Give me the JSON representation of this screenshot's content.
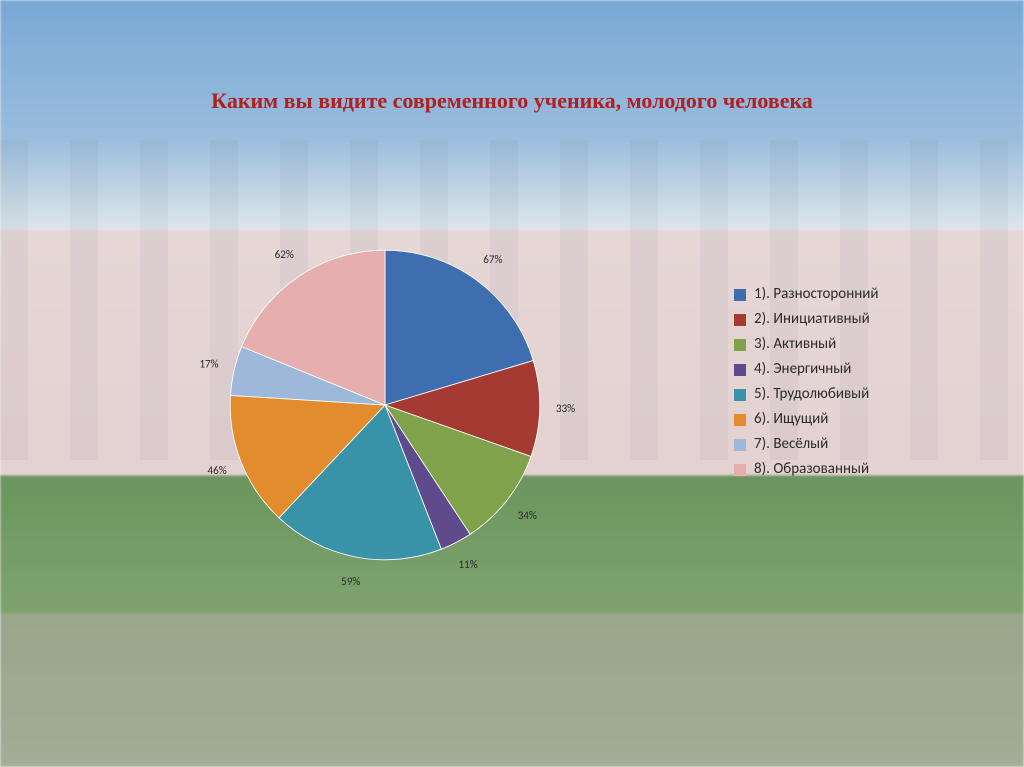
{
  "title": "Каким вы видите современного ученика, молодого человека",
  "title_color": "#b02020",
  "title_fontsize": 22,
  "chart": {
    "type": "pie",
    "start_angle_deg": -90,
    "radius": 180,
    "edge_color": "#ffffff",
    "edge_width": 1,
    "label_fontsize": 13,
    "label_offset": 30,
    "slices": [
      {
        "value": 67,
        "label": "1).  Разносторонний",
        "color": "#3e6eb0",
        "pct_text": "67%"
      },
      {
        "value": 33,
        "label": "2).  Инициативный",
        "color": "#a53a32",
        "pct_text": "33%"
      },
      {
        "value": 34,
        "label": "3).  Активный",
        "color": "#7fa24b",
        "pct_text": "34%"
      },
      {
        "value": 11,
        "label": "4).  Энергичный",
        "color": "#5f4a8c",
        "pct_text": "11%"
      },
      {
        "value": 59,
        "label": "5).  Трудолюбивый",
        "color": "#3893a8",
        "pct_text": "59%"
      },
      {
        "value": 46,
        "label": "6).  Ищущий",
        "color": "#e28c2d",
        "pct_text": "46%"
      },
      {
        "value": 17,
        "label": "7). Весёлый",
        "color": "#9db8d9",
        "pct_text": "17%"
      },
      {
        "value": 62,
        "label": "8). Образованный",
        "color": "#e7aeb0",
        "pct_text": "62%"
      }
    ]
  },
  "legend": {
    "swatch_size": 12,
    "fontsize": 15,
    "text_color": "#2b2b2b"
  }
}
